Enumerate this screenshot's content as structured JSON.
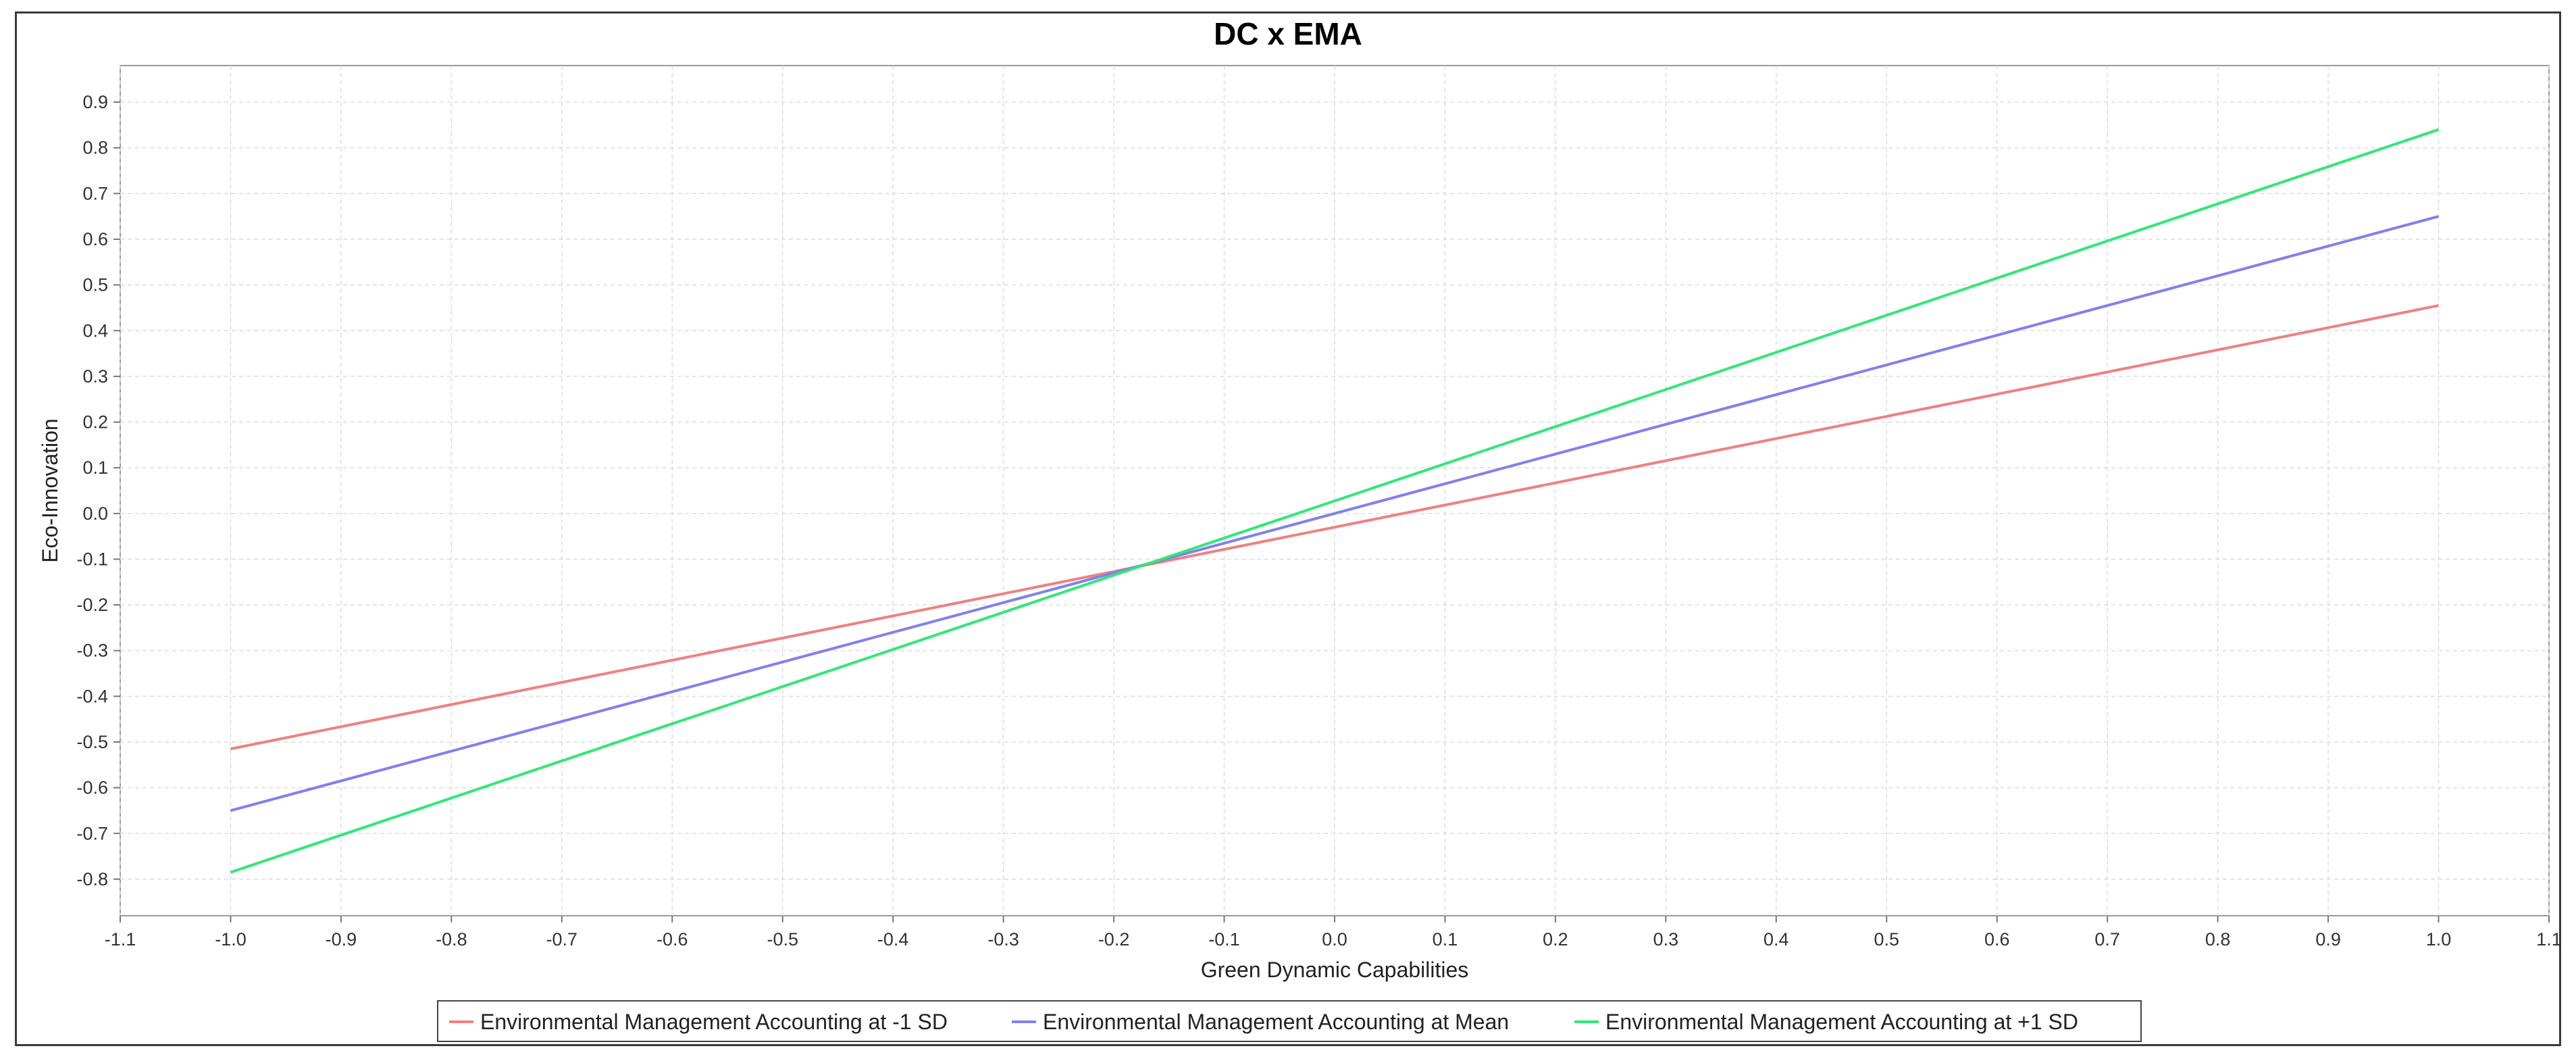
{
  "chart_data": {
    "type": "line",
    "title": "DC x EMA",
    "xlabel": "Green Dynamic Capabilities",
    "ylabel": "Eco-Innovation",
    "xlim": [
      -1.1,
      1.1
    ],
    "ylim": [
      -0.88,
      0.98
    ],
    "x_ticks": [
      "-1.1",
      "-1.0",
      "-0.9",
      "-0.8",
      "-0.7",
      "-0.6",
      "-0.5",
      "-0.4",
      "-0.3",
      "-0.2",
      "-0.1",
      "0.0",
      "0.1",
      "0.2",
      "0.3",
      "0.4",
      "0.5",
      "0.6",
      "0.7",
      "0.8",
      "0.9",
      "1.0",
      "1.1"
    ],
    "y_ticks": [
      "-0.8",
      "-0.7",
      "-0.6",
      "-0.5",
      "-0.4",
      "-0.3",
      "-0.2",
      "-0.1",
      "0.0",
      "0.1",
      "0.2",
      "0.3",
      "0.4",
      "0.5",
      "0.6",
      "0.7",
      "0.8",
      "0.9"
    ],
    "grid": true,
    "legend_position": "bottom-center",
    "series": [
      {
        "name": "Environmental Management Accounting at -1 SD",
        "color": "#f08080",
        "x": [
          -1.0,
          1.0
        ],
        "y": [
          -0.515,
          0.455
        ]
      },
      {
        "name": "Environmental Management Accounting at Mean",
        "color": "#8080f0",
        "x": [
          -1.0,
          1.0
        ],
        "y": [
          -0.65,
          0.65
        ]
      },
      {
        "name": "Environmental Management Accounting at +1 SD",
        "color": "#30e878",
        "x": [
          -1.0,
          1.0
        ],
        "y": [
          -0.785,
          0.84
        ]
      }
    ]
  }
}
